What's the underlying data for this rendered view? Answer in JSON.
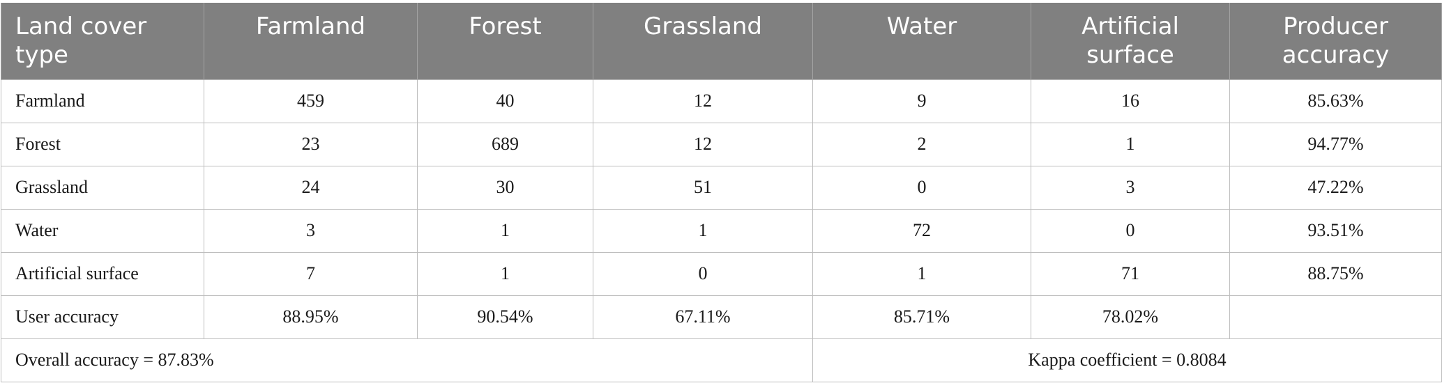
{
  "table": {
    "headers": [
      "Land cover type",
      "Farmland",
      "Forest",
      "Grassland",
      "Water",
      "Artificial surface",
      "Producer accuracy"
    ],
    "rows": [
      {
        "label": "Farmland",
        "cells": [
          "459",
          "40",
          "12",
          "9",
          "16",
          "85.63%"
        ]
      },
      {
        "label": "Forest",
        "cells": [
          "23",
          "689",
          "12",
          "2",
          "1",
          "94.77%"
        ]
      },
      {
        "label": "Grassland",
        "cells": [
          "24",
          "30",
          "51",
          "0",
          "3",
          "47.22%"
        ]
      },
      {
        "label": "Water",
        "cells": [
          "3",
          "1",
          "1",
          "72",
          "0",
          "93.51%"
        ]
      },
      {
        "label": "Artificial surface",
        "cells": [
          "7",
          "1",
          "0",
          "1",
          "71",
          "88.75%"
        ]
      },
      {
        "label": "User accuracy",
        "cells": [
          "88.95%",
          "90.54%",
          "67.11%",
          "85.71%",
          "78.02%",
          ""
        ]
      }
    ],
    "footer": {
      "overall": "Overall accuracy = 87.83%",
      "kappa": "Kappa coefficient = 0.8084"
    }
  }
}
